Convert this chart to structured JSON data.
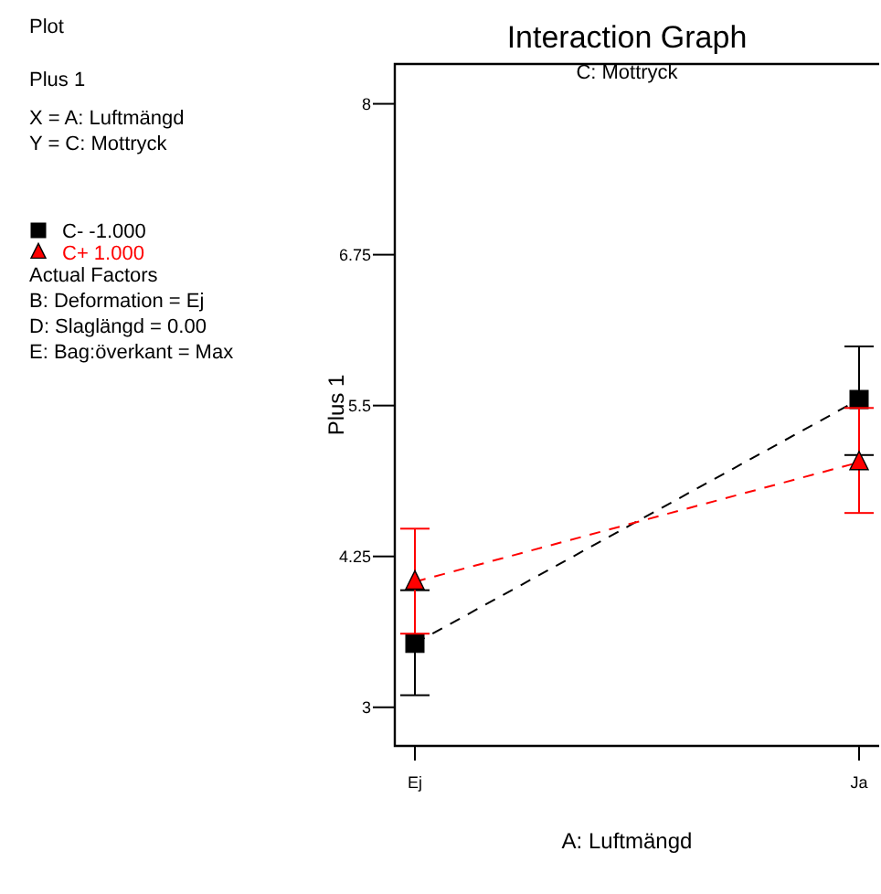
{
  "chart_data": {
    "type": "line",
    "title": "Interaction Graph",
    "subtitle": "C: Mottryck",
    "xlabel": "A: Luftmängd",
    "ylabel": "Plus 1",
    "categories": [
      "Ej",
      "Ja"
    ],
    "series": [
      {
        "name": "C- -1.000",
        "color": "#000000",
        "marker": "square",
        "values": [
          3.53,
          5.55
        ],
        "errors": [
          [
            3.1,
            3.97
          ],
          [
            5.09,
            5.99
          ]
        ]
      },
      {
        "name": "C+ 1.000",
        "color": "#ff0000",
        "marker": "triangle",
        "values": [
          4.04,
          5.03
        ],
        "errors": [
          [
            3.61,
            4.48
          ],
          [
            4.61,
            5.48
          ]
        ]
      }
    ],
    "line_style": "dashed",
    "ylim": [
      2.68,
      8.33
    ],
    "yticks": [
      3,
      4.25,
      5.5,
      6.75,
      8
    ],
    "grid": false,
    "legend": "left",
    "annotations": [
      "Plot",
      "Plus 1",
      "X = A: Luftmängd",
      "Y = C: Mottryck",
      "Actual Factors",
      "B: Deformation = Ej",
      "D: Slaglängd = 0.00",
      "E: Bag:överkant = Max"
    ]
  }
}
